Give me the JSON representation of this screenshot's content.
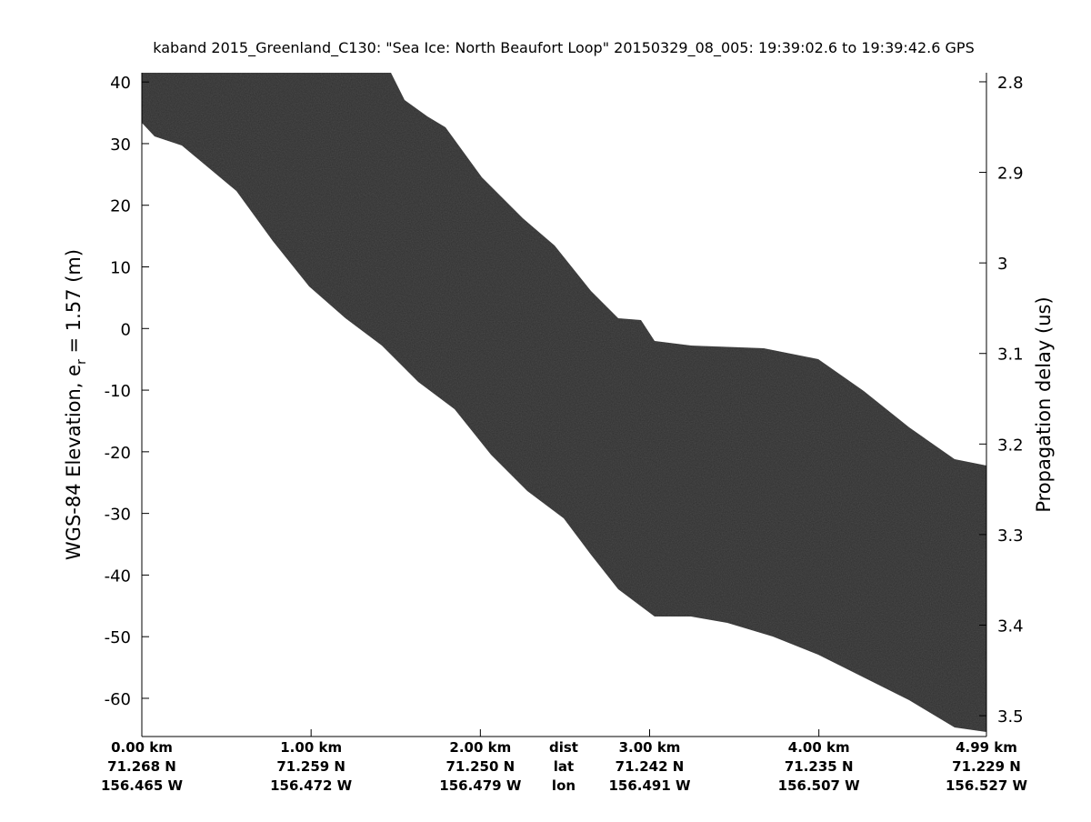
{
  "chart_data": {
    "type": "echogram",
    "title": "kaband 2015_Greenland_C130: \"Sea Ice: North Beaufort Loop\"  20150329_08_005: 19:39:02.6 to 19:39:42.6 GPS",
    "ylabel": "WGS-84 Elevation, e",
    "ylabel_sub": "r",
    "ylabel_end": " = 1.57 (m)",
    "y2label": "Propagation delay (us)",
    "xlim": [
      0,
      4.99
    ],
    "xticks": [
      {
        "value": 0,
        "label": "0.00 km"
      },
      {
        "value": 1,
        "label": "1.00 km"
      },
      {
        "value": 2,
        "label": "2.00 km"
      },
      {
        "value": 3,
        "label": "3.00 km"
      },
      {
        "value": 4,
        "label": "4.00 km"
      },
      {
        "value": 4.99,
        "label": "4.99 km"
      }
    ],
    "lat_labels": [
      "71.268 N",
      "71.259 N",
      "71.250 N",
      "71.242 N",
      "71.235 N",
      "71.229 N"
    ],
    "lon_labels": [
      "156.465 W",
      "156.472 W",
      "156.479 W",
      "156.491 W",
      "156.507 W",
      "156.527 W"
    ],
    "row_names": [
      "dist",
      "lat",
      "lon"
    ],
    "ylim": [
      -66.2,
      41.5
    ],
    "yticks": [
      40,
      30,
      20,
      10,
      0,
      -10,
      -20,
      -30,
      -40,
      -50,
      -60
    ],
    "y2lim": [
      3.523,
      2.79
    ],
    "y2ticks": [
      2.8,
      2.9,
      3,
      3.1,
      3.2,
      3.3,
      3.4,
      3.5
    ]
  }
}
